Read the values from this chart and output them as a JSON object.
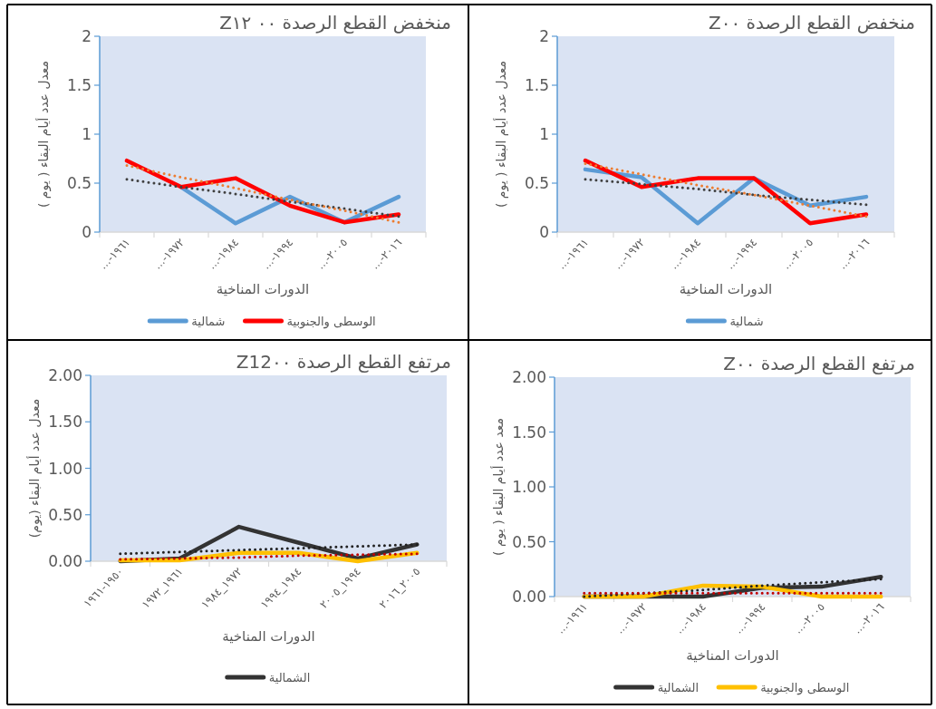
{
  "chart_data": [
    {
      "type": "line",
      "title": "منخفض القطع الرصدة ٠٠ Z١٢",
      "xlabel": "الدورات المناخية",
      "ylabel": "معدل عدد أيام البقاء ( يوم )",
      "categories": [
        "...-١٩٦١",
        "...-١٩٧٢",
        "...-١٩٨٤",
        "...-١٩٩٤",
        "...-٢٠٠٥",
        "...-٢٠١٦"
      ],
      "ylim": [
        0,
        2
      ],
      "yticks": [
        0,
        0.5,
        1,
        1.5,
        2
      ],
      "legend": "bottom",
      "series": [
        {
          "name": "شمالية",
          "color": "#5b9bd5",
          "values": [
            null,
            0.46,
            0.09,
            0.36,
            0.1,
            0.36
          ]
        },
        {
          "name": "الوسطى والجنوبية",
          "color": "#ff0000",
          "values": [
            0.73,
            0.46,
            0.55,
            0.27,
            0.1,
            0.18
          ]
        },
        {
          "color": "#404040",
          "line_style": "dotted",
          "values": [
            0.54,
            0.46,
            0.39,
            0.31,
            0.24,
            0.16
          ]
        },
        {
          "color": "#ed7d31",
          "line_style": "dotted",
          "values": [
            0.68,
            0.56,
            0.45,
            0.33,
            0.22,
            0.1
          ]
        }
      ]
    },
    {
      "type": "line",
      "title": "منخفض القطع الرصدة Z٠٠",
      "xlabel": "الدورات المناخية",
      "ylabel": "معدل عدد أيام البقاء ( يوم )",
      "categories": [
        "...-١٩٦١",
        "...-١٩٧٢",
        "...-١٩٨٤",
        "...-١٩٩٤",
        "...-٢٠٠٥",
        "...-٢٠١٦"
      ],
      "ylim": [
        0,
        2
      ],
      "yticks": [
        0,
        0.5,
        1,
        1.5,
        2
      ],
      "legend": "bottom",
      "series": [
        {
          "name": "شمالية",
          "color": "#5b9bd5",
          "values": [
            0.64,
            0.56,
            0.09,
            0.55,
            0.27,
            0.36
          ]
        },
        {
          "color": "#ff0000",
          "values": [
            0.73,
            0.46,
            0.55,
            0.55,
            0.09,
            0.18
          ]
        },
        {
          "color": "#404040",
          "line_style": "dotted",
          "values": [
            0.54,
            0.49,
            0.44,
            0.38,
            0.33,
            0.28
          ]
        },
        {
          "color": "#ed7d31",
          "line_style": "dotted",
          "values": [
            0.7,
            0.59,
            0.48,
            0.38,
            0.27,
            0.16
          ]
        }
      ]
    },
    {
      "type": "line",
      "title": "مرتفع القطع الرصدة Z12٠٠",
      "xlabel": "الدورات المناخية",
      "ylabel": "معدل عدد أيام البقاء (يوم)",
      "categories": [
        "١٩٥٠-١٩٦١",
        "١٩٦١_١٩٧٢",
        "١٩٧٢_١٩٨٤",
        "١٩٨٤_١٩٩٤",
        "١٩٩٤_٢٠٠٥",
        "٢٠٠٥_٢٠١٦"
      ],
      "ylim": [
        0,
        2
      ],
      "yticks": [
        {
          "value": 0,
          "label": "0.00"
        },
        {
          "value": 0.5,
          "label": "0.50"
        },
        {
          "value": 1,
          "label": "1.00"
        },
        {
          "value": 1.5,
          "label": "1.50"
        },
        {
          "value": 2,
          "label": "2.00"
        }
      ],
      "legend": "bottom",
      "series": [
        {
          "name": "الشمالية",
          "color": "#333333",
          "values": [
            0.0,
            0.03,
            0.37,
            0.2,
            0.03,
            0.18
          ]
        },
        {
          "color": "#ffc000",
          "values": [
            0.01,
            0.01,
            0.09,
            0.09,
            0.0,
            0.09
          ]
        },
        {
          "color": "#222222",
          "line_style": "dotted",
          "values": [
            0.08,
            0.1,
            0.12,
            0.14,
            0.16,
            0.18
          ]
        },
        {
          "color": "#c00000",
          "line_style": "dotted",
          "values": [
            0.02,
            0.03,
            0.04,
            0.06,
            0.07,
            0.08
          ]
        }
      ]
    },
    {
      "type": "line",
      "title": "مرتفع القطع الرصدة Z٠٠",
      "xlabel": "الدورات المناخية",
      "ylabel": "معد عدد أيام البقاء ( يوم )",
      "categories": [
        "...-١٩٦١",
        "...-١٩٧٢",
        "...-١٩٨٤",
        "...-١٩٩٤",
        "...-٢٠٠٥",
        "...-٢٠١٦"
      ],
      "ylim": [
        0,
        2
      ],
      "yticks": [
        {
          "value": 0,
          "label": "0.00"
        },
        {
          "value": 0.5,
          "label": "0.50"
        },
        {
          "value": 1,
          "label": "1.00"
        },
        {
          "value": 1.5,
          "label": "1.50"
        },
        {
          "value": 2,
          "label": "2.00"
        }
      ],
      "legend": "bottom",
      "series": [
        {
          "name": "الشمالية",
          "color": "#333333",
          "values": [
            0.0,
            0.0,
            0.0,
            0.08,
            0.09,
            0.18
          ]
        },
        {
          "name": "الوسطى والجنوبية",
          "color": "#ffc000",
          "values": [
            0.0,
            0.0,
            0.1,
            0.09,
            0.0,
            0.0
          ]
        },
        {
          "color": "#222222",
          "line_style": "dotted",
          "values": [
            0.0,
            0.03,
            0.06,
            0.1,
            0.13,
            0.16
          ]
        },
        {
          "color": "#c00000",
          "line_style": "dotted",
          "values": [
            0.03,
            0.03,
            0.03,
            0.03,
            0.03,
            0.03
          ]
        }
      ]
    }
  ]
}
